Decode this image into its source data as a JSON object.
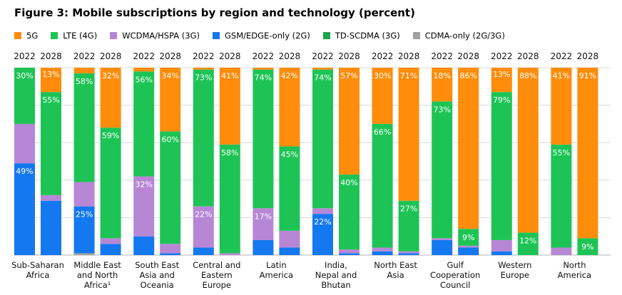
{
  "title": "Figure 3: Mobile subscriptions by region and technology (percent)",
  "legend": [
    {
      "label": "5G",
      "color": "#ff8c0a"
    },
    {
      "label": "LTE (4G)",
      "color": "#1dc455"
    },
    {
      "label": "WCDMA/HSPA (3G)",
      "color": "#b787d6"
    },
    {
      "label": "GSM/EDGE-only (2G)",
      "color": "#1478f0"
    },
    {
      "label": "TD-SCDMA (3G)",
      "color": "#1aa64a"
    },
    {
      "label": "CDMA-only (2G/3G)",
      "color": "#a0a0a0"
    }
  ],
  "chart_data": {
    "type": "bar",
    "stacked": true,
    "ylim": [
      0,
      100
    ],
    "grid": true,
    "legend_position": "top-left",
    "year_labels": [
      "2022",
      "2028"
    ],
    "stack_order_bottom_to_top": [
      "CDMA-only (2G/3G)",
      "TD-SCDMA (3G)",
      "GSM/EDGE-only (2G)",
      "WCDMA/HSPA (3G)",
      "LTE (4G)",
      "5G"
    ],
    "regions": [
      {
        "label": [
          "Sub-Saharan",
          "Africa"
        ],
        "bars": [
          {
            "year": "2022",
            "values": {
              "cdma": 0,
              "tdscdma": 0,
              "gsm": 49,
              "wcdma": 21,
              "lte": 30,
              "fiveg": 0
            },
            "labels": {
              "lte": "30%",
              "gsm": "49%"
            }
          },
          {
            "year": "2028",
            "values": {
              "cdma": 0,
              "tdscdma": 0,
              "gsm": 29,
              "wcdma": 3,
              "lte": 55,
              "fiveg": 13
            },
            "labels": {
              "fiveg": "13%",
              "lte": "55%"
            }
          }
        ]
      },
      {
        "label": [
          "Middle East",
          "and North",
          "Africa¹"
        ],
        "bars": [
          {
            "year": "2022",
            "values": {
              "cdma": 1,
              "tdscdma": 0,
              "gsm": 25,
              "wcdma": 13,
              "lte": 58,
              "fiveg": 3
            },
            "labels": {
              "lte": "58%",
              "gsm": "25%"
            }
          },
          {
            "year": "2028",
            "values": {
              "cdma": 0,
              "tdscdma": 0,
              "gsm": 6,
              "wcdma": 3,
              "lte": 59,
              "fiveg": 32
            },
            "labels": {
              "fiveg": "32%",
              "lte": "59%"
            }
          }
        ]
      },
      {
        "label": [
          "South East",
          "Asia and",
          "Oceania"
        ],
        "bars": [
          {
            "year": "2022",
            "values": {
              "cdma": 0,
              "tdscdma": 0,
              "gsm": 10,
              "wcdma": 32,
              "lte": 56,
              "fiveg": 2
            },
            "labels": {
              "lte": "56%",
              "wcdma": "32%"
            }
          },
          {
            "year": "2028",
            "values": {
              "cdma": 0,
              "tdscdma": 0,
              "gsm": 1,
              "wcdma": 5,
              "lte": 60,
              "fiveg": 34
            },
            "labels": {
              "fiveg": "34%",
              "lte": "60%"
            }
          }
        ]
      },
      {
        "label": [
          "Central and",
          "Eastern",
          "Europe"
        ],
        "bars": [
          {
            "year": "2022",
            "values": {
              "cdma": 0,
              "tdscdma": 0,
              "gsm": 4,
              "wcdma": 22,
              "lte": 73,
              "fiveg": 1
            },
            "labels": {
              "lte": "73%",
              "wcdma": "22%"
            }
          },
          {
            "year": "2028",
            "values": {
              "cdma": 0,
              "tdscdma": 0,
              "gsm": 0,
              "wcdma": 1,
              "lte": 58,
              "fiveg": 41
            },
            "labels": {
              "fiveg": "41%",
              "lte": "58%"
            }
          }
        ]
      },
      {
        "label": [
          "Latin",
          "America"
        ],
        "bars": [
          {
            "year": "2022",
            "values": {
              "cdma": 0,
              "tdscdma": 0,
              "gsm": 8,
              "wcdma": 17,
              "lte": 74,
              "fiveg": 1
            },
            "labels": {
              "lte": "74%",
              "wcdma": "17%"
            }
          },
          {
            "year": "2028",
            "values": {
              "cdma": 0,
              "tdscdma": 0,
              "gsm": 4,
              "wcdma": 9,
              "lte": 45,
              "fiveg": 42
            },
            "labels": {
              "fiveg": "42%",
              "lte": "45%"
            }
          }
        ]
      },
      {
        "label": [
          "India,",
          "Nepal and",
          "Bhutan"
        ],
        "bars": [
          {
            "year": "2022",
            "values": {
              "cdma": 0,
              "tdscdma": 0,
              "gsm": 22,
              "wcdma": 3,
              "lte": 74,
              "fiveg": 1
            },
            "labels": {
              "lte": "74%",
              "gsm": "22%"
            }
          },
          {
            "year": "2028",
            "values": {
              "cdma": 0,
              "tdscdma": 0,
              "gsm": 1,
              "wcdma": 2,
              "lte": 40,
              "fiveg": 57
            },
            "labels": {
              "fiveg": "57%",
              "lte": "40%"
            }
          }
        ]
      },
      {
        "label": [
          "North East",
          "Asia"
        ],
        "bars": [
          {
            "year": "2022",
            "values": {
              "cdma": 0,
              "tdscdma": 0,
              "gsm": 2,
              "wcdma": 2,
              "lte": 66,
              "fiveg": 30
            },
            "labels": {
              "fiveg": "30%",
              "lte": "66%"
            }
          },
          {
            "year": "2028",
            "values": {
              "cdma": 0,
              "tdscdma": 0,
              "gsm": 1,
              "wcdma": 1,
              "lte": 27,
              "fiveg": 71
            },
            "labels": {
              "fiveg": "71%",
              "lte": "27%"
            }
          }
        ]
      },
      {
        "label": [
          "Gulf",
          "Cooperation",
          "Council"
        ],
        "bars": [
          {
            "year": "2022",
            "values": {
              "cdma": 0,
              "tdscdma": 0,
              "gsm": 8,
              "wcdma": 1,
              "lte": 73,
              "fiveg": 18
            },
            "labels": {
              "fiveg": "18%",
              "lte": "73%"
            }
          },
          {
            "year": "2028",
            "values": {
              "cdma": 0,
              "tdscdma": 0,
              "gsm": 4,
              "wcdma": 1,
              "lte": 9,
              "fiveg": 86
            },
            "labels": {
              "fiveg": "86%",
              "lte": "9%"
            }
          }
        ]
      },
      {
        "label": [
          "Western",
          "Europe"
        ],
        "bars": [
          {
            "year": "2022",
            "values": {
              "cdma": 0,
              "tdscdma": 0,
              "gsm": 2,
              "wcdma": 6,
              "lte": 79,
              "fiveg": 13
            },
            "labels": {
              "fiveg": "13%",
              "lte": "79%"
            }
          },
          {
            "year": "2028",
            "values": {
              "cdma": 0,
              "tdscdma": 0,
              "gsm": 0,
              "wcdma": 0,
              "lte": 12,
              "fiveg": 88
            },
            "labels": {
              "fiveg": "88%",
              "lte": "12%"
            }
          }
        ]
      },
      {
        "label": [
          "North",
          "America"
        ],
        "bars": [
          {
            "year": "2022",
            "values": {
              "cdma": 0,
              "tdscdma": 0,
              "gsm": 0,
              "wcdma": 4,
              "lte": 55,
              "fiveg": 41
            },
            "labels": {
              "fiveg": "41%",
              "lte": "55%"
            }
          },
          {
            "year": "2028",
            "values": {
              "cdma": 0,
              "tdscdma": 0,
              "gsm": 0,
              "wcdma": 0,
              "lte": 9,
              "fiveg": 91
            },
            "labels": {
              "fiveg": "91%",
              "lte": "9%"
            }
          }
        ]
      }
    ]
  }
}
